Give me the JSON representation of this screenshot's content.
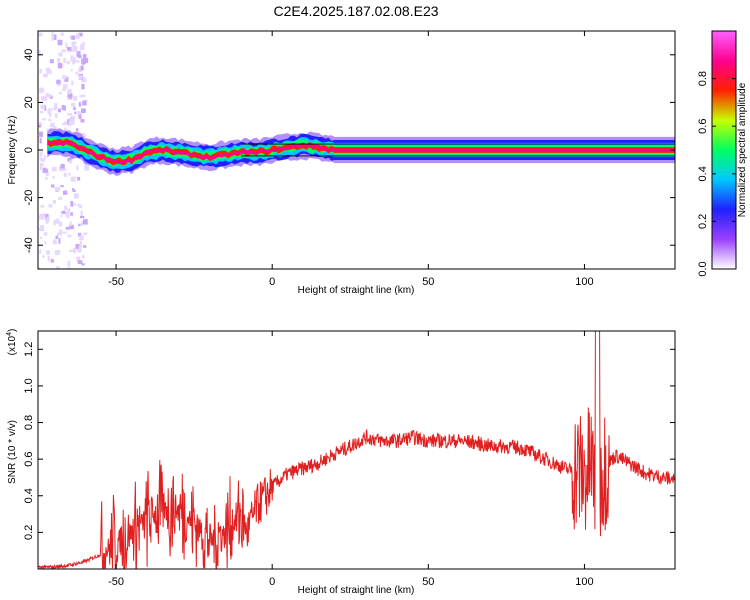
{
  "title": "C2E4.2025.187.02.08.E23",
  "chart_data": [
    {
      "type": "heatmap",
      "xlabel": "Height of straight line (km)",
      "ylabel": "Frequency (Hz)",
      "xlim": [
        -75,
        129
      ],
      "ylim": [
        -50,
        50
      ],
      "xticks": [
        -50,
        0,
        50,
        100
      ],
      "yticks": [
        -40,
        -20,
        0,
        20,
        40
      ],
      "colorbar": {
        "label": "Normalized spectral amplitude",
        "ticks": [
          "0.0",
          "0.2",
          "0.4",
          "0.6",
          "0.8"
        ],
        "range": [
          0,
          1
        ],
        "colors": [
          "#ffffff",
          "#9b40ff",
          "#2020ff",
          "#00c8ff",
          "#00ff60",
          "#c8ff00",
          "#ff2000",
          "#ff0090",
          "#ff60ff"
        ]
      },
      "ridge": [
        {
          "h": -72,
          "f": 3
        },
        {
          "h": -65,
          "f": 3
        },
        {
          "h": -60,
          "f": 0
        },
        {
          "h": -55,
          "f": -3
        },
        {
          "h": -50,
          "f": -5
        },
        {
          "h": -45,
          "f": -4
        },
        {
          "h": -40,
          "f": -1
        },
        {
          "h": -35,
          "f": 0
        },
        {
          "h": -30,
          "f": -1
        },
        {
          "h": -25,
          "f": -2
        },
        {
          "h": -20,
          "f": -3
        },
        {
          "h": -15,
          "f": -2
        },
        {
          "h": -10,
          "f": -1
        },
        {
          "h": -5,
          "f": -1
        },
        {
          "h": 0,
          "f": 0
        },
        {
          "h": 5,
          "f": 1
        },
        {
          "h": 10,
          "f": 2
        },
        {
          "h": 15,
          "f": 1
        },
        {
          "h": 20,
          "f": 0
        },
        {
          "h": 129,
          "f": 0
        }
      ]
    },
    {
      "type": "line",
      "xlabel": "Height of straight line (km)",
      "ylabel": "SNR (10 * v/v)",
      "y_multiplier": "(x10",
      "y_multiplier_exp": "4",
      "xlim": [
        -75,
        129
      ],
      "ylim": [
        0,
        1.3
      ],
      "xticks": [
        -50,
        0,
        50,
        100
      ],
      "yticks": [
        0.2,
        0.4,
        0.6,
        0.8,
        1.0,
        1.2
      ],
      "series": [
        {
          "color": "#e02020",
          "x": [
            -75,
            -70,
            -65,
            -60,
            -55,
            -50,
            -45,
            -40,
            -35,
            -30,
            -25,
            -20,
            -15,
            -10,
            -8,
            -5,
            -2,
            0,
            5,
            10,
            15,
            20,
            25,
            30,
            35,
            40,
            45,
            50,
            55,
            60,
            65,
            70,
            75,
            80,
            85,
            90,
            95,
            98,
            100,
            102,
            104,
            106,
            110,
            115,
            120,
            125,
            129
          ],
          "y": [
            0.01,
            0.01,
            0.02,
            0.04,
            0.08,
            0.14,
            0.2,
            0.27,
            0.33,
            0.32,
            0.25,
            0.15,
            0.2,
            0.3,
            0.2,
            0.34,
            0.4,
            0.45,
            0.52,
            0.55,
            0.58,
            0.63,
            0.67,
            0.72,
            0.7,
            0.7,
            0.72,
            0.7,
            0.7,
            0.7,
            0.69,
            0.67,
            0.67,
            0.66,
            0.62,
            0.58,
            0.54,
            0.55,
            0.5,
            0.58,
            0.45,
            0.55,
            0.62,
            0.57,
            0.52,
            0.5,
            0.49
          ]
        }
      ]
    }
  ]
}
